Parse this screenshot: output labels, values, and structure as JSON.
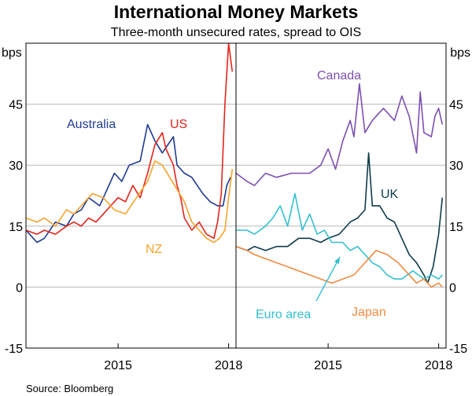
{
  "chart_data": {
    "type": "line",
    "title": "International Money Markets",
    "subtitle": "Three-month unsecured rates, spread to OIS",
    "source": "Source:   Bloomberg",
    "unit_left": "bps",
    "unit_right": "bps",
    "y_ticks": [
      "45",
      "30",
      "15",
      "0",
      "-15"
    ],
    "ylim": [
      -15,
      60
    ],
    "grid": true,
    "x_tick_labels": [
      "2015",
      "2018"
    ],
    "panels": [
      {
        "name": "left",
        "series": [
          {
            "name": "Australia",
            "color": "#1f3a93",
            "points": [
              [
                2012.5,
                14
              ],
              [
                2012.8,
                11
              ],
              [
                2013.0,
                12
              ],
              [
                2013.3,
                16
              ],
              [
                2013.6,
                15
              ],
              [
                2013.8,
                18
              ],
              [
                2014.0,
                19
              ],
              [
                2014.2,
                22
              ],
              [
                2014.5,
                20
              ],
              [
                2014.7,
                24
              ],
              [
                2014.9,
                28
              ],
              [
                2015.1,
                26
              ],
              [
                2015.3,
                30
              ],
              [
                2015.6,
                31
              ],
              [
                2015.8,
                40
              ],
              [
                2016.0,
                36
              ],
              [
                2016.2,
                33
              ],
              [
                2016.5,
                37
              ],
              [
                2016.6,
                30
              ],
              [
                2016.8,
                28
              ],
              [
                2017.0,
                27
              ],
              [
                2017.3,
                23
              ],
              [
                2017.5,
                21
              ],
              [
                2017.7,
                20
              ],
              [
                2017.85,
                20
              ],
              [
                2017.95,
                25
              ],
              [
                2018.05,
                27
              ]
            ]
          },
          {
            "name": "US",
            "color": "#e3241b",
            "points": [
              [
                2012.5,
                14
              ],
              [
                2012.8,
                13
              ],
              [
                2013.0,
                14
              ],
              [
                2013.3,
                13
              ],
              [
                2013.6,
                15
              ],
              [
                2013.8,
                16
              ],
              [
                2014.0,
                15
              ],
              [
                2014.2,
                17
              ],
              [
                2014.4,
                16
              ],
              [
                2014.6,
                18
              ],
              [
                2014.8,
                20
              ],
              [
                2015.0,
                22
              ],
              [
                2015.2,
                21
              ],
              [
                2015.4,
                25
              ],
              [
                2015.6,
                22
              ],
              [
                2015.8,
                28
              ],
              [
                2016.0,
                35
              ],
              [
                2016.2,
                38
              ],
              [
                2016.3,
                34
              ],
              [
                2016.5,
                30
              ],
              [
                2016.6,
                25
              ],
              [
                2016.7,
                22
              ],
              [
                2016.8,
                17
              ],
              [
                2017.0,
                14
              ],
              [
                2017.2,
                16
              ],
              [
                2017.4,
                13
              ],
              [
                2017.6,
                12
              ],
              [
                2017.7,
                16
              ],
              [
                2017.8,
                23
              ],
              [
                2017.9,
                45
              ],
              [
                2018.0,
                60
              ],
              [
                2018.1,
                53
              ]
            ]
          },
          {
            "name": "NZ",
            "color": "#f6a42d",
            "points": [
              [
                2012.5,
                17
              ],
              [
                2012.8,
                16
              ],
              [
                2013.0,
                17
              ],
              [
                2013.3,
                15
              ],
              [
                2013.6,
                19
              ],
              [
                2013.8,
                18
              ],
              [
                2014.0,
                20
              ],
              [
                2014.3,
                23
              ],
              [
                2014.6,
                22
              ],
              [
                2014.9,
                19
              ],
              [
                2015.2,
                18
              ],
              [
                2015.5,
                22
              ],
              [
                2015.8,
                26
              ],
              [
                2016.0,
                31
              ],
              [
                2016.2,
                30
              ],
              [
                2016.4,
                27
              ],
              [
                2016.6,
                24
              ],
              [
                2016.8,
                21
              ],
              [
                2017.0,
                16
              ],
              [
                2017.2,
                14
              ],
              [
                2017.4,
                12
              ],
              [
                2017.6,
                11
              ],
              [
                2017.75,
                12
              ],
              [
                2017.9,
                14
              ],
              [
                2018.0,
                22
              ],
              [
                2018.1,
                29
              ]
            ]
          }
        ],
        "labels": [
          {
            "text": "Australia",
            "series": "Australia"
          },
          {
            "text": "US",
            "series": "US"
          },
          {
            "text": "NZ",
            "series": "NZ"
          }
        ]
      },
      {
        "name": "right",
        "series": [
          {
            "name": "Canada",
            "color": "#7d4fb1",
            "points": [
              [
                2012.5,
                28
              ],
              [
                2012.8,
                26
              ],
              [
                2013.0,
                25
              ],
              [
                2013.3,
                28
              ],
              [
                2013.6,
                27
              ],
              [
                2014.0,
                28
              ],
              [
                2014.5,
                28
              ],
              [
                2014.8,
                30
              ],
              [
                2015.0,
                34
              ],
              [
                2015.2,
                29
              ],
              [
                2015.4,
                36
              ],
              [
                2015.6,
                41
              ],
              [
                2015.7,
                37
              ],
              [
                2015.85,
                50
              ],
              [
                2016.0,
                38
              ],
              [
                2016.2,
                41
              ],
              [
                2016.5,
                44
              ],
              [
                2016.8,
                41
              ],
              [
                2017.0,
                47
              ],
              [
                2017.2,
                42
              ],
              [
                2017.4,
                33
              ],
              [
                2017.5,
                48
              ],
              [
                2017.6,
                38
              ],
              [
                2017.8,
                37
              ],
              [
                2017.9,
                42
              ],
              [
                2018.0,
                44
              ],
              [
                2018.1,
                40
              ]
            ]
          },
          {
            "name": "UK",
            "color": "#0d3b4c",
            "points": [
              [
                2012.5,
                10
              ],
              [
                2012.8,
                9
              ],
              [
                2013.0,
                10
              ],
              [
                2013.3,
                9
              ],
              [
                2013.6,
                10
              ],
              [
                2013.9,
                10
              ],
              [
                2014.2,
                12
              ],
              [
                2014.5,
                12
              ],
              [
                2014.8,
                11
              ],
              [
                2015.0,
                12
              ],
              [
                2015.3,
                13
              ],
              [
                2015.6,
                16
              ],
              [
                2015.8,
                17
              ],
              [
                2016.0,
                19
              ],
              [
                2016.1,
                33
              ],
              [
                2016.2,
                20
              ],
              [
                2016.4,
                20
              ],
              [
                2016.6,
                17
              ],
              [
                2016.8,
                16
              ],
              [
                2017.0,
                12
              ],
              [
                2017.2,
                8
              ],
              [
                2017.4,
                6
              ],
              [
                2017.6,
                3
              ],
              [
                2017.7,
                1
              ],
              [
                2017.85,
                5
              ],
              [
                2018.0,
                13
              ],
              [
                2018.1,
                22
              ]
            ]
          },
          {
            "name": "Euro area",
            "color": "#35c0d0",
            "points": [
              [
                2012.5,
                14
              ],
              [
                2012.8,
                14
              ],
              [
                2013.0,
                13
              ],
              [
                2013.3,
                15
              ],
              [
                2013.5,
                17
              ],
              [
                2013.7,
                20
              ],
              [
                2013.9,
                15
              ],
              [
                2014.1,
                23
              ],
              [
                2014.3,
                14
              ],
              [
                2014.5,
                18
              ],
              [
                2014.7,
                13
              ],
              [
                2014.9,
                14
              ],
              [
                2015.1,
                11
              ],
              [
                2015.4,
                11
              ],
              [
                2015.6,
                9
              ],
              [
                2015.8,
                10
              ],
              [
                2016.0,
                8
              ],
              [
                2016.2,
                6
              ],
              [
                2016.4,
                5
              ],
              [
                2016.6,
                3
              ],
              [
                2016.8,
                2
              ],
              [
                2017.0,
                2
              ],
              [
                2017.3,
                4
              ],
              [
                2017.6,
                2
              ],
              [
                2017.8,
                3
              ],
              [
                2018.0,
                2
              ],
              [
                2018.1,
                3
              ]
            ]
          },
          {
            "name": "Japan",
            "color": "#f28a40",
            "points": [
              [
                2012.5,
                10
              ],
              [
                2012.8,
                9
              ],
              [
                2013.0,
                8
              ],
              [
                2013.3,
                7
              ],
              [
                2013.6,
                6
              ],
              [
                2013.9,
                5
              ],
              [
                2014.2,
                4
              ],
              [
                2014.5,
                3
              ],
              [
                2014.8,
                2
              ],
              [
                2015.1,
                1
              ],
              [
                2015.4,
                2
              ],
              [
                2015.7,
                3
              ],
              [
                2015.9,
                5
              ],
              [
                2016.1,
                7
              ],
              [
                2016.3,
                9
              ],
              [
                2016.6,
                8
              ],
              [
                2016.9,
                6
              ],
              [
                2017.2,
                3
              ],
              [
                2017.4,
                1
              ],
              [
                2017.6,
                2
              ],
              [
                2017.8,
                0
              ],
              [
                2018.0,
                1
              ],
              [
                2018.1,
                0
              ]
            ]
          }
        ],
        "labels": [
          {
            "text": "Canada",
            "series": "Canada"
          },
          {
            "text": "UK",
            "series": "UK"
          },
          {
            "text": "Euro area",
            "series": "Euro area"
          },
          {
            "text": "Japan",
            "series": "Japan"
          }
        ]
      }
    ]
  }
}
